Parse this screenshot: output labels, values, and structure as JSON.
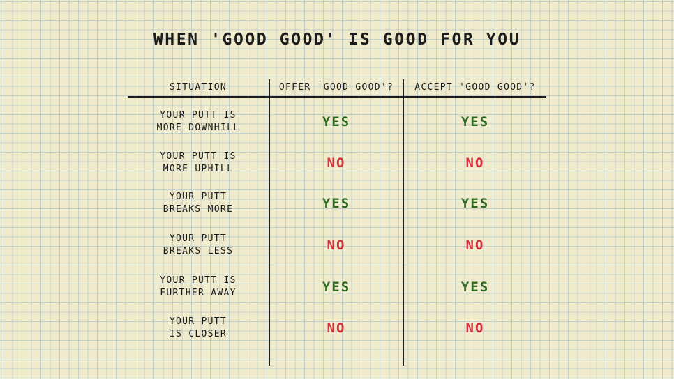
{
  "title": "WHEN 'GOOD GOOD' IS GOOD FOR YOU",
  "columns": [
    "SITUATION",
    "OFFER 'GOOD GOOD'?",
    "ACCEPT 'GOOD GOOD'?"
  ],
  "colors": {
    "yes": "#2e6a1f",
    "no": "#d6303a",
    "ink": "#1c1c1c",
    "paper": "#f1ebcd"
  },
  "rows": [
    {
      "situation": "YOUR PUTT IS\nMORE DOWNHILL",
      "offer": "YES",
      "accept": "YES"
    },
    {
      "situation": "YOUR PUTT IS\nMORE UPHILL",
      "offer": "NO",
      "accept": "NO"
    },
    {
      "situation": "YOUR PUTT\nBREAKS MORE",
      "offer": "YES",
      "accept": "YES"
    },
    {
      "situation": "YOUR PUTT\nBREAKS LESS",
      "offer": "NO",
      "accept": "NO"
    },
    {
      "situation": "YOUR PUTT IS\nFURTHER AWAY",
      "offer": "YES",
      "accept": "YES"
    },
    {
      "situation": "YOUR PUTT\nIS CLOSER",
      "offer": "NO",
      "accept": "NO"
    }
  ]
}
